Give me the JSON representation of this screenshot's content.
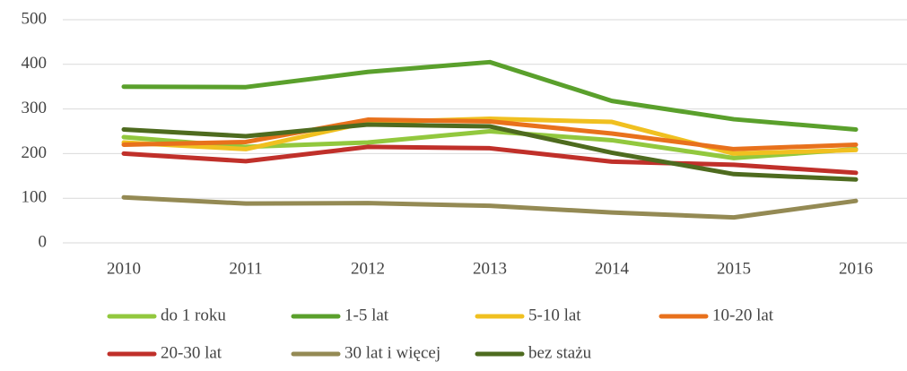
{
  "chart_data": {
    "type": "line",
    "categories": [
      "2010",
      "2011",
      "2012",
      "2013",
      "2014",
      "2015",
      "2016"
    ],
    "series": [
      {
        "name": "do 1 roku",
        "color": "#92c83e",
        "values": [
          237,
          215,
          225,
          250,
          230,
          190,
          210
        ]
      },
      {
        "name": "1-5 lat",
        "color": "#5aa02c",
        "values": [
          350,
          349,
          383,
          405,
          318,
          277,
          254
        ]
      },
      {
        "name": "5-10 lat",
        "color": "#f0c020",
        "values": [
          225,
          210,
          270,
          278,
          271,
          200,
          208
        ]
      },
      {
        "name": "10-20 lat",
        "color": "#e8711c",
        "values": [
          220,
          226,
          276,
          272,
          245,
          210,
          220
        ]
      },
      {
        "name": "20-30 lat",
        "color": "#c0302a",
        "values": [
          200,
          183,
          215,
          212,
          182,
          175,
          157
        ]
      },
      {
        "name": "30 lat i więcej",
        "color": "#948a54",
        "values": [
          102,
          88,
          89,
          83,
          68,
          57,
          94
        ]
      },
      {
        "name": "bez stażu",
        "color": "#4e6b1f",
        "values": [
          254,
          239,
          265,
          261,
          202,
          154,
          142
        ]
      }
    ],
    "ylim": [
      0,
      500
    ],
    "yticks": [
      0,
      100,
      200,
      300,
      400,
      500
    ],
    "grid": true,
    "legend": "bottom"
  }
}
